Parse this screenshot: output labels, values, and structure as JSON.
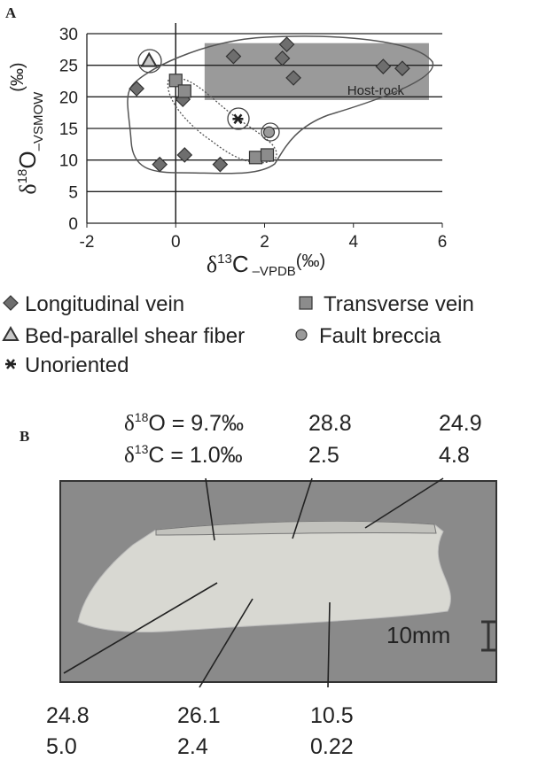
{
  "chart_data": {
    "type": "scatter",
    "panel": "A",
    "x_label": {
      "main": "δ",
      "sup": "13",
      "base": "C",
      "sub": "–VPDB",
      "unit": "(‰)"
    },
    "y_label": {
      "main": "δ",
      "sup": "18",
      "base": "O",
      "sub": "–VSMOW",
      "unit": "(‰)"
    },
    "xlim": [
      -2,
      6
    ],
    "xticks": [
      -2,
      0,
      2,
      4,
      6
    ],
    "ylim": [
      0,
      30
    ],
    "yticks": [
      0,
      5,
      10,
      15,
      20,
      25,
      30
    ],
    "grid": true,
    "host_rock": {
      "label": "Host-rock",
      "x": [
        0.65,
        5.7
      ],
      "y": [
        19.5,
        28.5
      ],
      "color": "#9a9a9a"
    },
    "series": [
      {
        "name": "Longitudinal vein",
        "marker": "diamond",
        "color": "#6e6e6e",
        "x": [
          -0.88,
          1.3,
          2.5,
          2.4,
          2.65,
          4.67,
          5.1,
          -0.36,
          0.2,
          1.0,
          0.16
        ],
        "values": [
          21.3,
          26.4,
          28.3,
          26.1,
          23.0,
          24.8,
          24.5,
          9.3,
          10.8,
          9.3,
          19.6
        ]
      },
      {
        "name": "Transverse vein",
        "marker": "square",
        "color": "#8c8c8c",
        "x": [
          0,
          0.2,
          1.8,
          2.06
        ],
        "values": [
          22.6,
          20.9,
          10.4,
          10.8
        ]
      },
      {
        "name": "Bed-parallel shear fiber",
        "marker": "triangle",
        "color": "#c8c8c8",
        "x": [
          -0.6
        ],
        "values": [
          25.7
        ]
      },
      {
        "name": "Fault breccia",
        "marker": "circle",
        "color": "#9a9a9a",
        "x": [
          2.1
        ],
        "values": [
          14.4
        ]
      },
      {
        "name": "Unoriented",
        "marker": "star",
        "color": "#222222",
        "x": [
          1.4
        ],
        "values": [
          16.5
        ]
      }
    ]
  },
  "panel_b": {
    "letter": "B",
    "first": {
      "o_prefix": "δ",
      "o_sup": "18",
      "o_rest": "O = 9.7‰",
      "c_prefix": "δ",
      "c_sup": "13",
      "c_rest": "C = 1.0‰"
    },
    "top_labels": [
      [
        "28.8",
        "2.5"
      ],
      [
        "24.9",
        "4.8"
      ]
    ],
    "bottom_labels": [
      [
        "24.8",
        "5.0"
      ],
      [
        "26.1",
        "2.4"
      ],
      [
        "10.5",
        "0.22"
      ]
    ],
    "scale": "10mm"
  }
}
